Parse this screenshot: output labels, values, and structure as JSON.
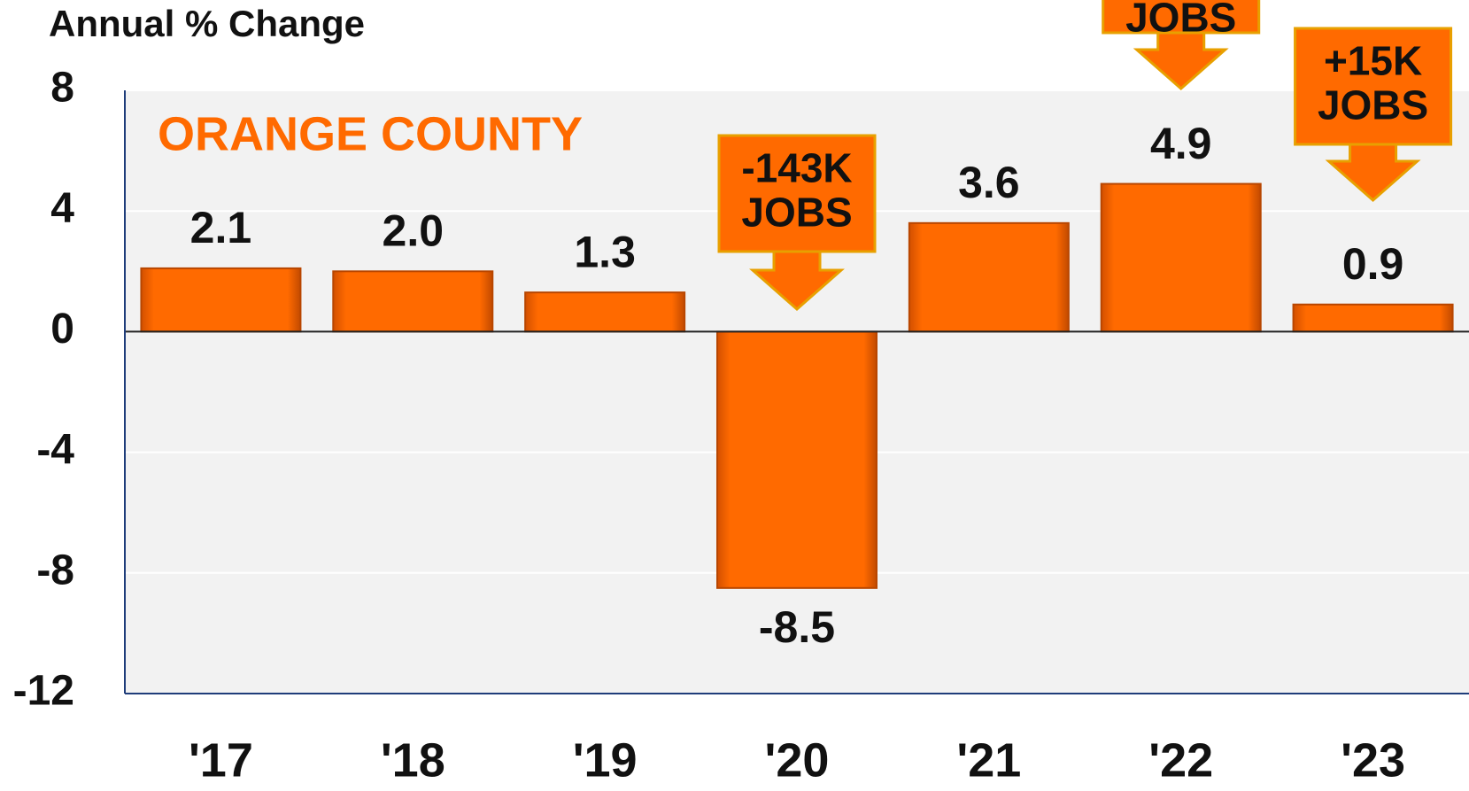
{
  "chart_data": {
    "type": "bar",
    "title": "ORANGE COUNTY",
    "y_axis_label": "Annual % Change",
    "categories": [
      "'17",
      "'18",
      "'19",
      "'20",
      "'21",
      "'22",
      "'23"
    ],
    "values": [
      2.1,
      2.0,
      1.3,
      -8.5,
      3.6,
      4.9,
      0.9
    ],
    "value_labels": [
      "2.1",
      "2.0",
      "1.3",
      "-8.5",
      "3.6",
      "4.9",
      "0.9"
    ],
    "color": "#ff6a00",
    "ylim": [
      -12,
      8
    ],
    "yticks": [
      -12,
      -8,
      -4,
      0,
      4,
      8
    ],
    "grid": true,
    "callouts": [
      [
        "-143K",
        "JOBS"
      ],
      [
        "JOBS"
      ],
      [
        "+15K",
        "JOBS"
      ]
    ]
  }
}
